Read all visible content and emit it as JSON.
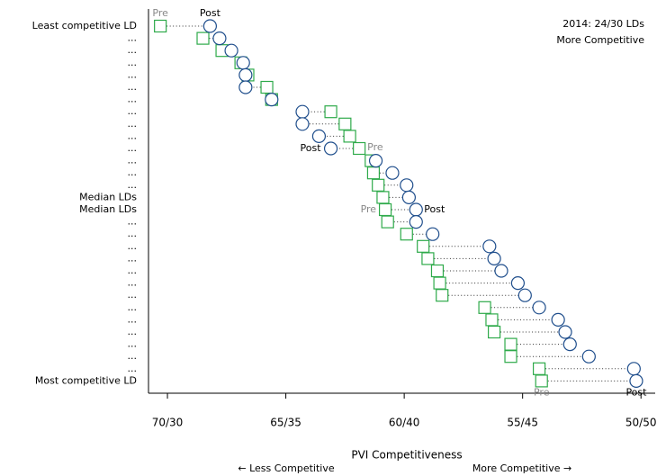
{
  "chart_data": {
    "type": "dumbbell",
    "categories": [
      "Least competitive LD",
      "...",
      "...",
      "...",
      "...",
      "...",
      "...",
      "...",
      "...",
      "...",
      "...",
      "...",
      "...",
      "...",
      "Median LDs",
      "Median LDs",
      "...",
      "...",
      "...",
      "...",
      "...",
      "...",
      "...",
      "...",
      "...",
      "...",
      "...",
      "...",
      "...",
      "Most competitive LD"
    ],
    "series": [
      {
        "name": "Pre",
        "color": "#2eaa4a",
        "marker": "square",
        "values": [
          70.3,
          68.5,
          67.7,
          66.9,
          66.6,
          65.8,
          65.6,
          63.1,
          62.5,
          62.3,
          61.9,
          61.4,
          61.3,
          61.1,
          60.9,
          60.8,
          60.7,
          59.9,
          59.2,
          59.0,
          58.6,
          58.5,
          58.4,
          56.6,
          56.3,
          56.2,
          55.5,
          55.5,
          54.3,
          54.2
        ]
      },
      {
        "name": "Post",
        "color": "#1f4e8c",
        "marker": "circle",
        "values": [
          68.2,
          67.8,
          67.3,
          66.8,
          66.7,
          66.7,
          65.6,
          64.3,
          64.3,
          63.6,
          63.1,
          61.2,
          60.5,
          59.9,
          59.8,
          59.5,
          59.5,
          58.8,
          56.4,
          56.2,
          55.9,
          55.2,
          54.9,
          54.3,
          53.5,
          53.2,
          53.0,
          52.2,
          50.3,
          50.2
        ]
      }
    ],
    "xlim": [
      70.8,
      49.4
    ],
    "xticks": [
      {
        "value": 70,
        "label": "70/30"
      },
      {
        "value": 65,
        "label": "65/35"
      },
      {
        "value": 60,
        "label": "60/40"
      },
      {
        "value": 55,
        "label": "55/45"
      },
      {
        "value": 50,
        "label": "50/50"
      }
    ],
    "x_label": "PVI Competitiveness",
    "x_label_left": "← Less Competitive",
    "x_label_right": "More Competitive →",
    "corner_note": [
      "2014: 24/30 LDs",
      "More Competitive"
    ]
  }
}
